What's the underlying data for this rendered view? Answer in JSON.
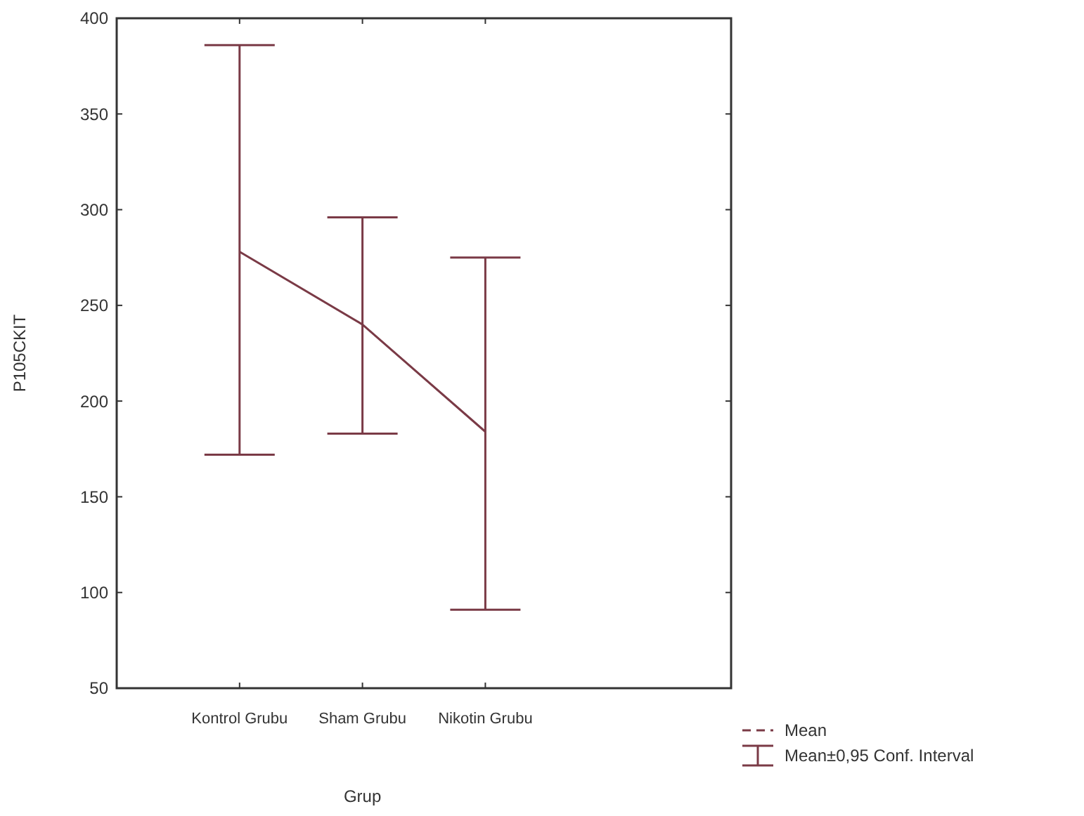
{
  "chart_data": {
    "type": "line",
    "xlabel": "Grup",
    "ylabel": "P105CKIT",
    "categories": [
      "Kontrol Grubu",
      "Sham Grubu",
      "Nikotin Grubu"
    ],
    "series": [
      {
        "name": "Mean",
        "color": "#7a3a46",
        "values": [
          278,
          240,
          184
        ],
        "errors": [
          [
            172,
            386
          ],
          [
            183,
            296
          ],
          [
            91,
            275
          ]
        ]
      }
    ],
    "ylim": [
      50,
      400
    ],
    "yticks": [
      50,
      100,
      150,
      200,
      250,
      300,
      350,
      400
    ],
    "grid": false,
    "legend": "bottom right",
    "marker": "none",
    "line_style": "solid",
    "annotations": [
      "Mean±0,95 Conf. Interval"
    ]
  }
}
